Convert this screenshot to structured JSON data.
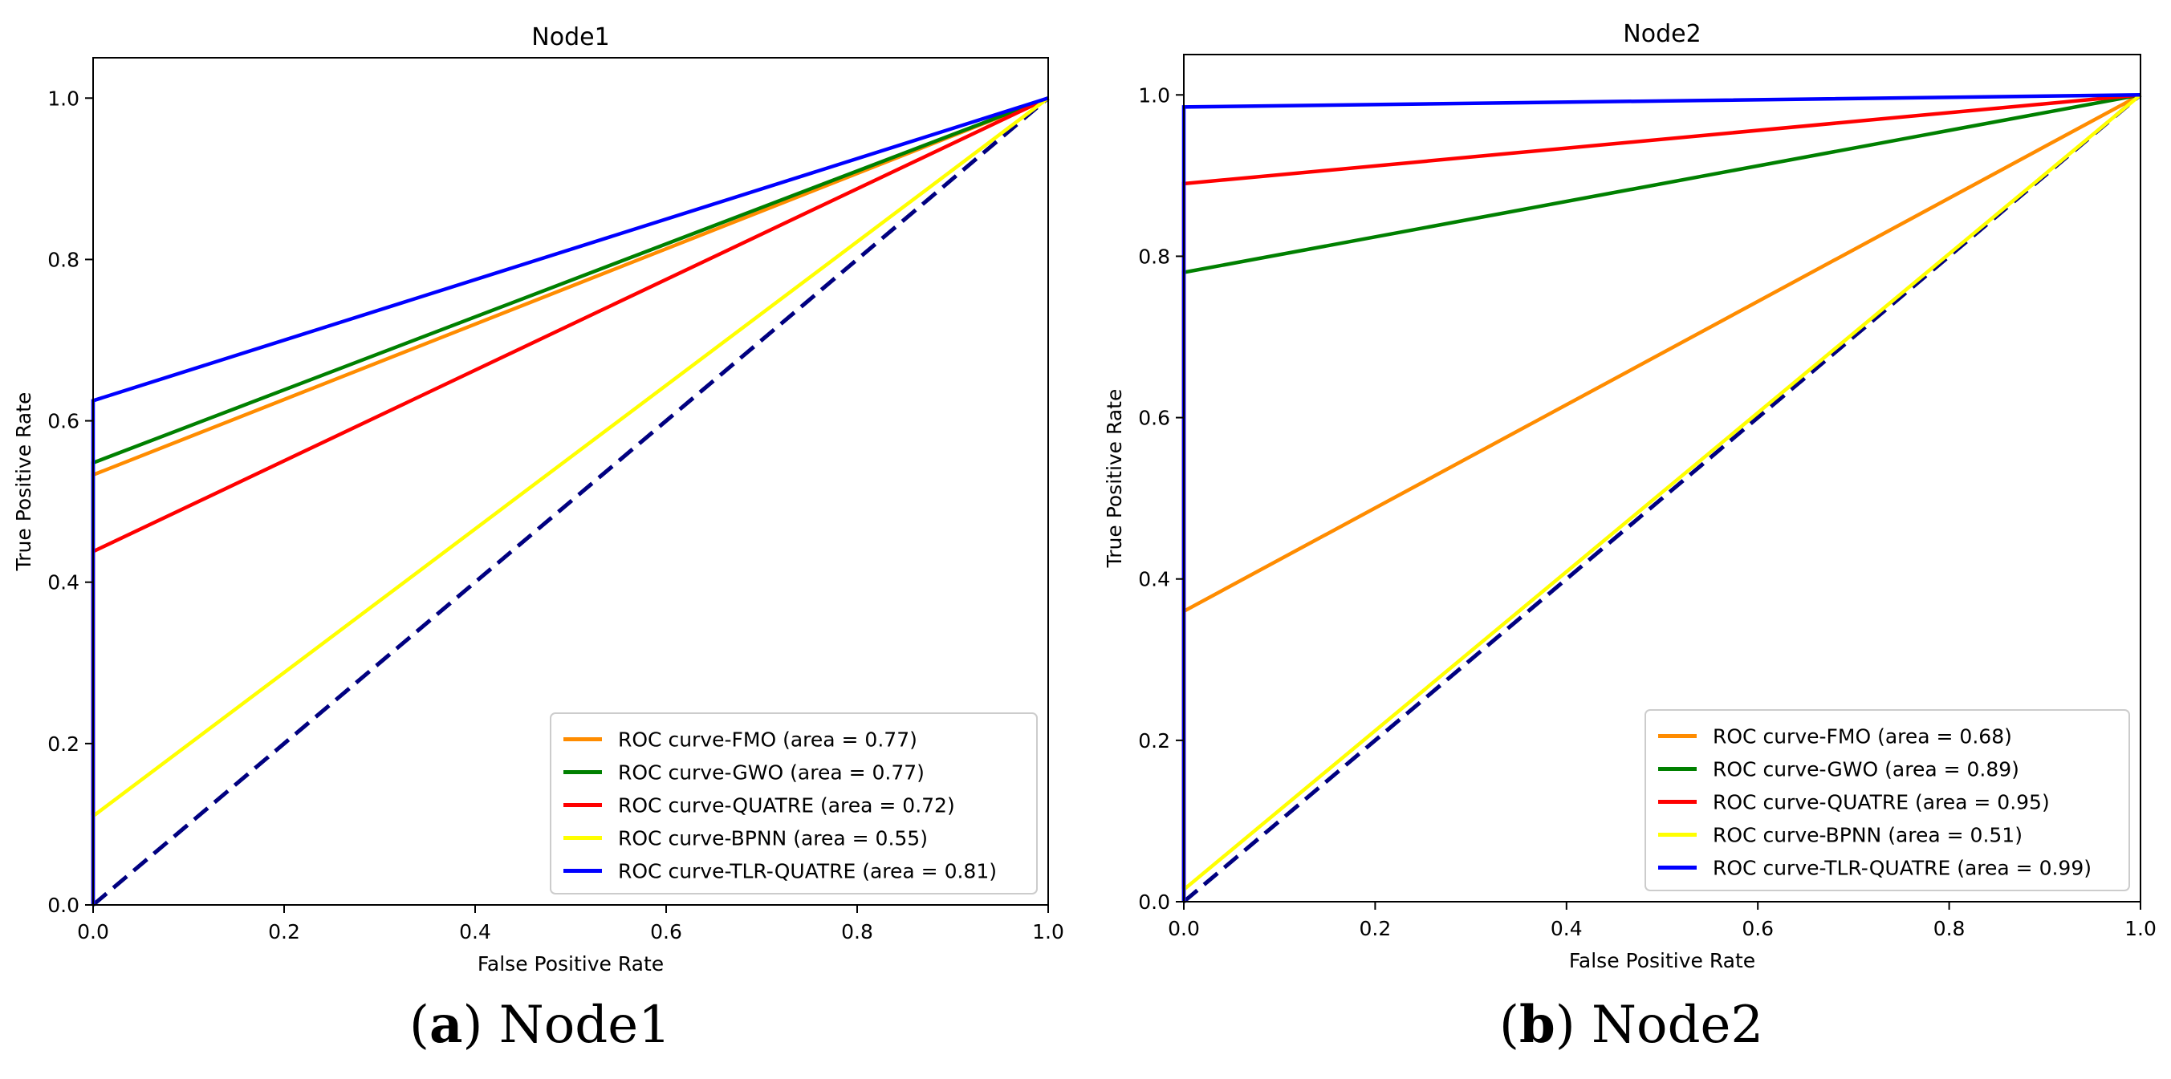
{
  "chart_data": [
    {
      "type": "line",
      "title": "Node1",
      "xlabel": "False Positive Rate",
      "ylabel": "True Positive Rate",
      "xlim": [
        0.0,
        1.0
      ],
      "ylim": [
        0.0,
        1.05
      ],
      "xticks": [
        "0.0",
        "0.2",
        "0.4",
        "0.6",
        "0.8",
        "1.0"
      ],
      "yticks": [
        "0.0",
        "0.2",
        "0.4",
        "0.6",
        "0.8",
        "1.0"
      ],
      "grid": false,
      "legend_position": "lower-right",
      "series": [
        {
          "name": "ROC curve-FMO (area = 0.77)",
          "color": "#ff8c00",
          "x": [
            0,
            0,
            1
          ],
          "y": [
            0,
            0.533,
            1
          ]
        },
        {
          "name": "ROC curve-GWO (area = 0.77)",
          "color": "#008000",
          "x": [
            0,
            0,
            1
          ],
          "y": [
            0,
            0.548,
            1
          ]
        },
        {
          "name": "ROC curve-QUATRE (area = 0.72)",
          "color": "#ff0000",
          "x": [
            0,
            0,
            1
          ],
          "y": [
            0,
            0.438,
            1
          ]
        },
        {
          "name": "ROC curve-BPNN (area = 0.55)",
          "color": "#ffff00",
          "x": [
            0,
            0,
            1
          ],
          "y": [
            0,
            0.11,
            1
          ]
        },
        {
          "name": "ROC curve-TLR-QUATRE (area = 0.81)",
          "color": "#0000ff",
          "x": [
            0,
            0,
            1
          ],
          "y": [
            0,
            0.625,
            1
          ]
        }
      ],
      "diagonal": {
        "color": "#000080",
        "style": "dashed",
        "x": [
          0,
          1
        ],
        "y": [
          0,
          1
        ]
      }
    },
    {
      "type": "line",
      "title": "Node2",
      "xlabel": "False Positive Rate",
      "ylabel": "True Positive Rate",
      "xlim": [
        0.0,
        1.0
      ],
      "ylim": [
        0.0,
        1.05
      ],
      "xticks": [
        "0.0",
        "0.2",
        "0.4",
        "0.6",
        "0.8",
        "1.0"
      ],
      "yticks": [
        "0.0",
        "0.2",
        "0.4",
        "0.6",
        "0.8",
        "1.0"
      ],
      "grid": false,
      "legend_position": "lower-right",
      "series": [
        {
          "name": "ROC curve-FMO (area = 0.68)",
          "color": "#ff8c00",
          "x": [
            0,
            0,
            1
          ],
          "y": [
            0,
            0.36,
            1
          ]
        },
        {
          "name": "ROC curve-GWO (area = 0.89)",
          "color": "#008000",
          "x": [
            0,
            0,
            1
          ],
          "y": [
            0,
            0.78,
            1
          ]
        },
        {
          "name": "ROC curve-QUATRE (area = 0.95)",
          "color": "#ff0000",
          "x": [
            0,
            0,
            1
          ],
          "y": [
            0,
            0.89,
            1
          ]
        },
        {
          "name": "ROC curve-BPNN (area = 0.51)",
          "color": "#ffff00",
          "x": [
            0,
            0,
            1
          ],
          "y": [
            0,
            0.015,
            1
          ]
        },
        {
          "name": "ROC curve-TLR-QUATRE (area = 0.99)",
          "color": "#0000ff",
          "x": [
            0,
            0,
            1
          ],
          "y": [
            0,
            0.985,
            1
          ]
        }
      ],
      "diagonal": {
        "color": "#000080",
        "style": "dashed",
        "x": [
          0,
          1
        ],
        "y": [
          0,
          1
        ]
      }
    }
  ],
  "captions": [
    {
      "label": "(a)",
      "text": "Node1"
    },
    {
      "label": "(b)",
      "text": "Node2"
    }
  ]
}
